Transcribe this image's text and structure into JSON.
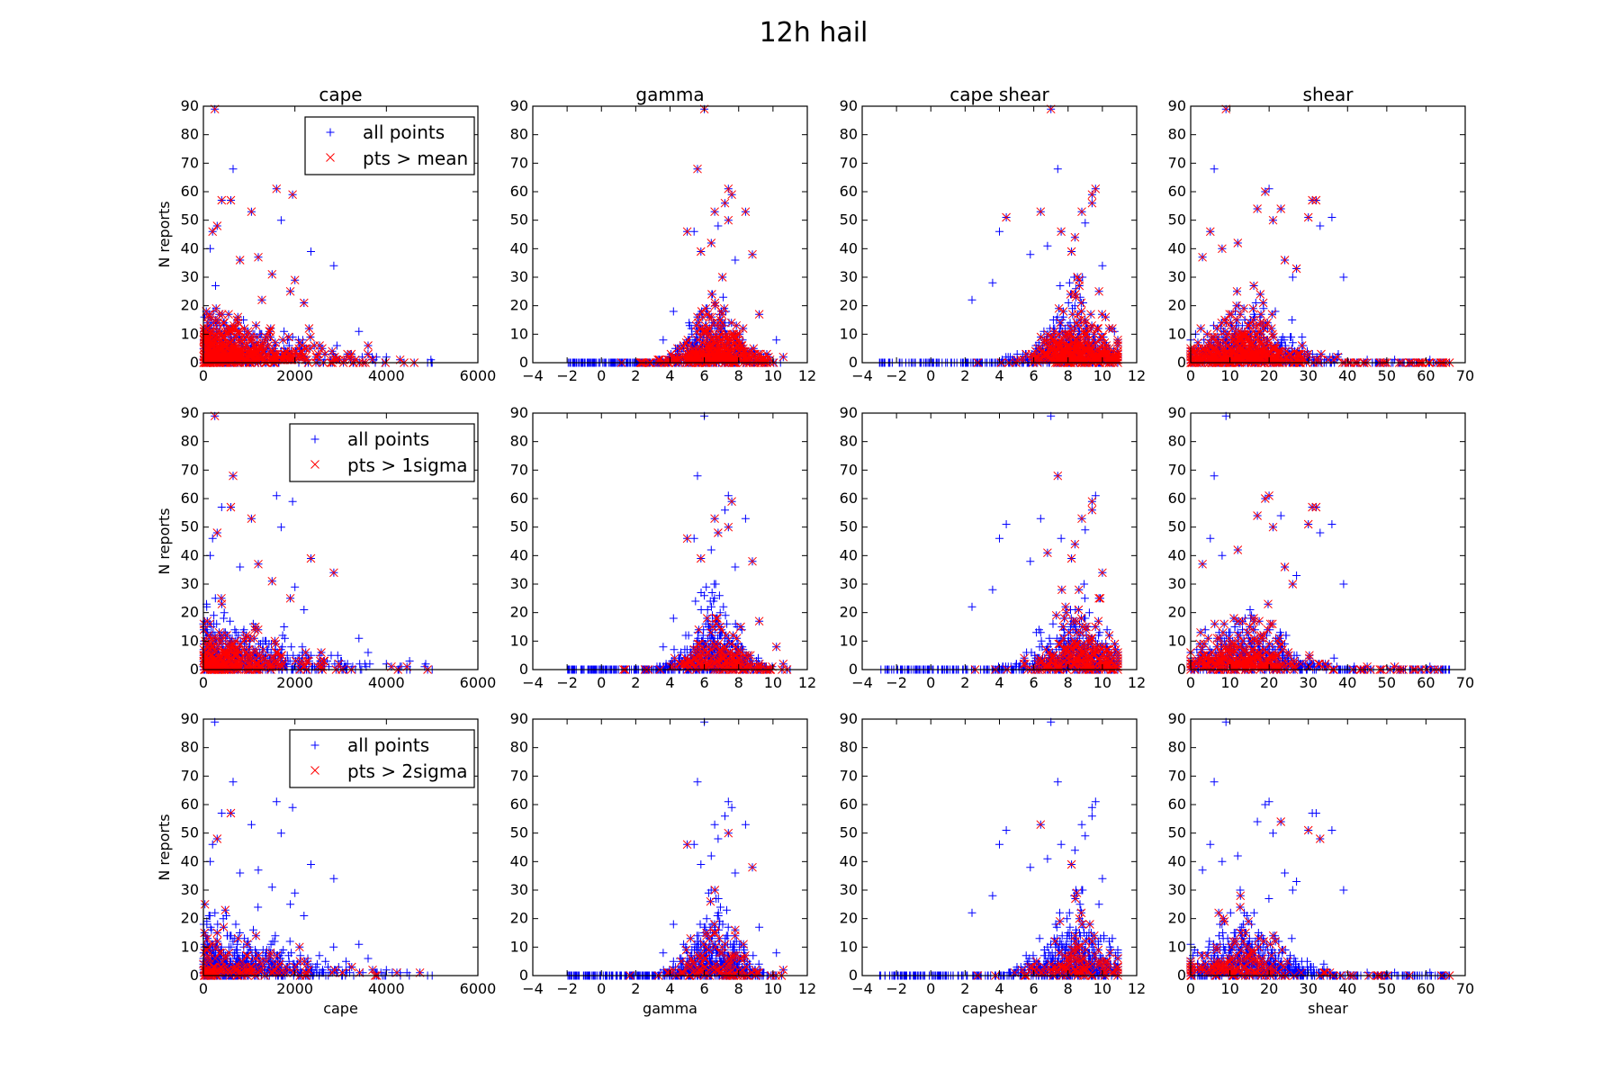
{
  "figure": {
    "title": "12h hail"
  },
  "columns": [
    {
      "key": "cape",
      "title": "cape",
      "xlabel": "cape",
      "xlim": [
        0,
        6000
      ],
      "xticks": [
        0,
        2000,
        4000,
        6000
      ]
    },
    {
      "key": "gamma",
      "title": "gamma",
      "xlabel": "gamma",
      "xlim": [
        -4,
        12
      ],
      "xticks": [
        -4,
        -2,
        0,
        2,
        4,
        6,
        8,
        10,
        12
      ]
    },
    {
      "key": "capeshear",
      "title": "cape shear",
      "xlabel": "capeshear",
      "xlim": [
        -4,
        12
      ],
      "xticks": [
        -4,
        -2,
        0,
        2,
        4,
        6,
        8,
        10,
        12
      ]
    },
    {
      "key": "shear",
      "title": "shear",
      "xlabel": "shear",
      "xlim": [
        0,
        70
      ],
      "xticks": [
        0,
        10,
        20,
        30,
        40,
        50,
        60,
        70
      ]
    }
  ],
  "rows": [
    {
      "threshold": "mean",
      "legend": [
        "all points",
        "pts > mean"
      ]
    },
    {
      "threshold": "1sigma",
      "legend": [
        "all points",
        "pts > 1sigma"
      ]
    },
    {
      "threshold": "2sigma",
      "legend": [
        "all points",
        "pts > 2sigma"
      ]
    }
  ],
  "ylabel": "N reports",
  "ylim": [
    0,
    90
  ],
  "yticks": [
    0,
    10,
    20,
    30,
    40,
    50,
    60,
    70,
    80,
    90
  ],
  "colors": {
    "all_points": "#0000ff",
    "highlighted": "#ff0000",
    "axes": "#000000"
  },
  "chart_data": {
    "type": "scatter",
    "grid": false,
    "legend_location": "upper right (first column only)",
    "marker_all_points": "+",
    "marker_highlighted": "x",
    "highlighted_fraction_by_row": [
      0.55,
      0.32,
      0.16
    ],
    "outliers": {
      "cape": [
        [
          250,
          89
        ],
        [
          650,
          68
        ],
        [
          1600,
          61
        ],
        [
          1950,
          59
        ],
        [
          1050,
          53
        ],
        [
          1700,
          50
        ],
        [
          400,
          57
        ],
        [
          600,
          57
        ],
        [
          300,
          48
        ],
        [
          2350,
          39
        ],
        [
          2850,
          34
        ],
        [
          2000,
          29
        ],
        [
          1500,
          31
        ],
        [
          150,
          40
        ],
        [
          200,
          46
        ],
        [
          800,
          36
        ],
        [
          1900,
          25
        ],
        [
          2200,
          21
        ],
        [
          1200,
          37
        ],
        [
          3400,
          11
        ],
        [
          3600,
          6
        ],
        [
          4900,
          0
        ],
        [
          5000,
          0
        ],
        [
          4000,
          2
        ],
        [
          4300,
          1
        ]
      ],
      "gamma": [
        [
          6.0,
          89
        ],
        [
          5.6,
          68
        ],
        [
          7.4,
          61
        ],
        [
          7.6,
          59
        ],
        [
          7.2,
          56
        ],
        [
          6.6,
          53
        ],
        [
          8.4,
          53
        ],
        [
          7.4,
          50
        ],
        [
          5.0,
          46
        ],
        [
          5.4,
          46
        ],
        [
          6.4,
          42
        ],
        [
          8.8,
          38
        ],
        [
          7.8,
          36
        ],
        [
          9.2,
          17
        ],
        [
          10.2,
          8
        ],
        [
          10.6,
          2
        ],
        [
          4.2,
          18
        ],
        [
          3.6,
          8
        ],
        [
          5.8,
          39
        ],
        [
          6.8,
          48
        ]
      ],
      "capeshear": [
        [
          7.0,
          89
        ],
        [
          7.4,
          68
        ],
        [
          9.6,
          61
        ],
        [
          9.4,
          59
        ],
        [
          9.4,
          56
        ],
        [
          8.8,
          53
        ],
        [
          6.4,
          53
        ],
        [
          4.4,
          51
        ],
        [
          9.0,
          49
        ],
        [
          4.0,
          46
        ],
        [
          7.6,
          46
        ],
        [
          6.8,
          41
        ],
        [
          8.4,
          44
        ],
        [
          10.0,
          34
        ],
        [
          9.8,
          25
        ],
        [
          10.4,
          12
        ],
        [
          2.4,
          22
        ],
        [
          3.6,
          28
        ],
        [
          5.8,
          38
        ],
        [
          8.2,
          39
        ]
      ],
      "shear": [
        [
          9,
          89
        ],
        [
          6,
          68
        ],
        [
          20,
          61
        ],
        [
          19,
          60
        ],
        [
          17,
          54
        ],
        [
          31,
          57
        ],
        [
          32,
          57
        ],
        [
          23,
          54
        ],
        [
          30,
          51
        ],
        [
          33,
          48
        ],
        [
          36,
          51
        ],
        [
          21,
          50
        ],
        [
          5,
          46
        ],
        [
          12,
          42
        ],
        [
          8,
          40
        ],
        [
          3,
          37
        ],
        [
          39,
          30
        ],
        [
          27,
          33
        ],
        [
          24,
          36
        ],
        [
          26,
          30
        ],
        [
          61,
          1
        ],
        [
          64,
          0
        ],
        [
          66,
          0
        ],
        [
          52,
          1
        ],
        [
          45,
          1
        ]
      ]
    },
    "bulk_distribution": {
      "cape": {
        "x_range": [
          0,
          4500
        ],
        "y_max_typical": 25
      },
      "gamma": {
        "x_range": [
          -2,
          11
        ],
        "y_max_typical": 30,
        "peak_x": 6.5
      },
      "capeshear": {
        "x_range": [
          -3,
          11
        ],
        "y_max_typical": 30,
        "peak_x": 8.5
      },
      "shear": {
        "x_range": [
          0,
          66
        ],
        "y_max_typical": 30,
        "peak_x": 12
      }
    }
  }
}
